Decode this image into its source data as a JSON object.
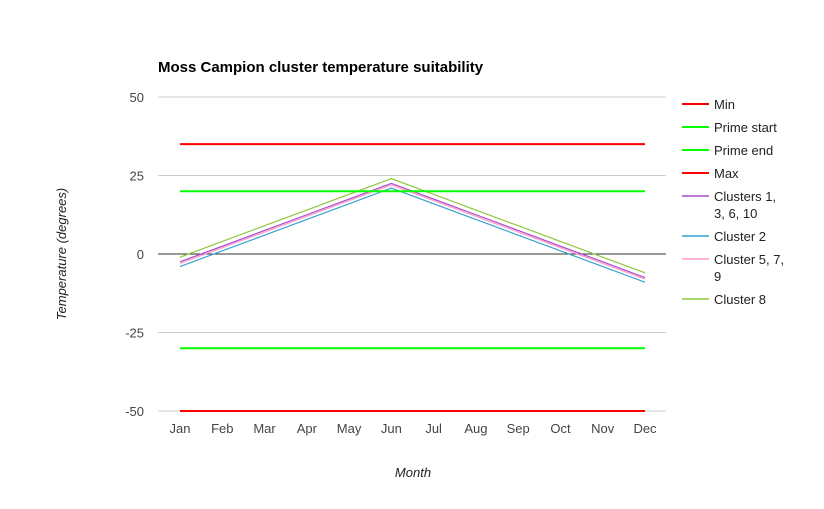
{
  "chart_data": {
    "type": "line",
    "title": "Moss Campion cluster temperature suitability",
    "xlabel": "Month",
    "ylabel": "Temperature (degrees)",
    "categories": [
      "Jan",
      "Feb",
      "Mar",
      "Apr",
      "May",
      "Jun",
      "Jul",
      "Aug",
      "Sep",
      "Oct",
      "Nov",
      "Dec"
    ],
    "ylim": [
      -50,
      50
    ],
    "yticks": [
      50,
      25,
      0,
      -25,
      -50
    ],
    "legend_position": "right",
    "grid": true,
    "series": [
      {
        "name": "Min",
        "color": "#ff0000",
        "values": [
          -50,
          -50,
          -50,
          -50,
          -50,
          -50,
          -50,
          -50,
          -50,
          -50,
          -50,
          -50
        ]
      },
      {
        "name": "Prime start",
        "color": "#00ff00",
        "values": [
          -30,
          -30,
          -30,
          -30,
          -30,
          -30,
          -30,
          -30,
          -30,
          -30,
          -30,
          -30
        ]
      },
      {
        "name": "Prime end",
        "color": "#00ff00",
        "values": [
          20,
          20,
          20,
          20,
          20,
          20,
          20,
          20,
          20,
          20,
          20,
          20
        ]
      },
      {
        "name": "Max",
        "color": "#ff0000",
        "values": [
          35,
          35,
          35,
          35,
          35,
          35,
          35,
          35,
          35,
          35,
          35,
          35
        ]
      },
      {
        "name": "Clusters 1, 3, 6, 10",
        "color": "#a64dc9",
        "values": [
          -2.5,
          2.5,
          7.5,
          12.5,
          17.5,
          22.5,
          17.5,
          12.5,
          7.5,
          2.5,
          -2.5,
          -7.5
        ]
      },
      {
        "name": "Cluster 2",
        "color": "#36a3d1",
        "values": [
          -4,
          1,
          6,
          11,
          16,
          21,
          16,
          11,
          6,
          1,
          -4,
          -9
        ]
      },
      {
        "name": "Cluster 5, 7, 9",
        "color": "#ff99cc",
        "values": [
          -3,
          2,
          7,
          12,
          17,
          22,
          17,
          12,
          7,
          2,
          -3,
          -8
        ]
      },
      {
        "name": "Cluster 8",
        "color": "#8fc63d",
        "values": [
          -1,
          4,
          9,
          14,
          19,
          24,
          19,
          14,
          9,
          4,
          -1,
          -6
        ]
      }
    ]
  }
}
